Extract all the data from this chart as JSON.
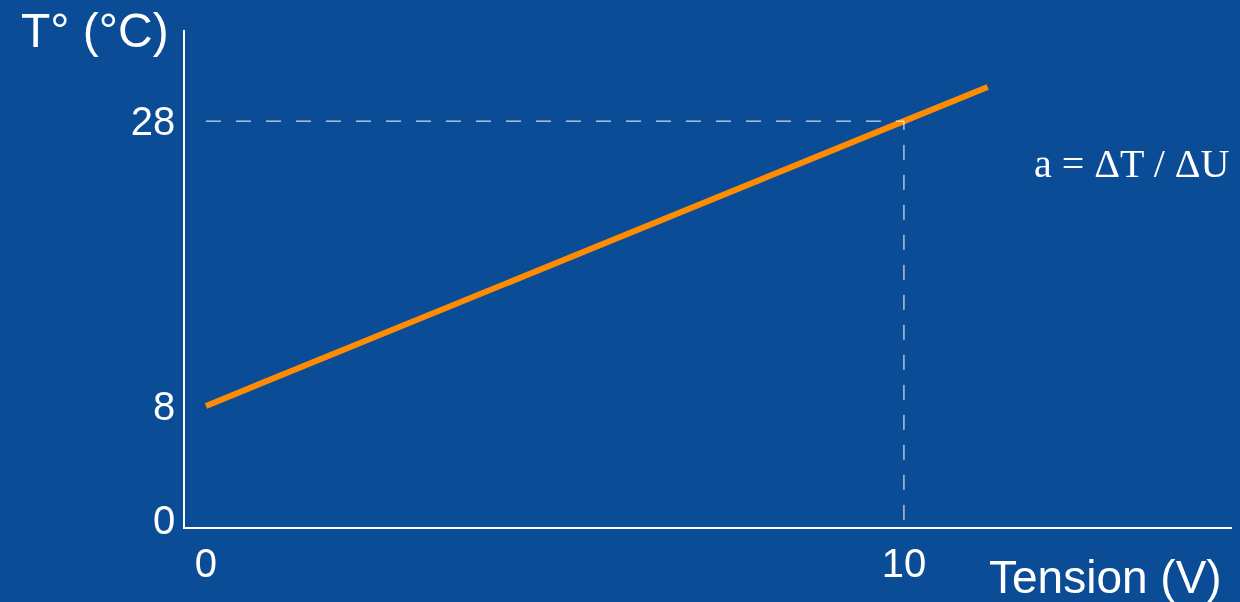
{
  "chart_data": {
    "type": "line",
    "xlabel": "Tension (V)",
    "ylabel": "T° (°C)",
    "x": [
      0,
      10,
      11.2
    ],
    "series": [
      {
        "color": "#ff8c00",
        "values": [
          8,
          28,
          30.4
        ]
      }
    ],
    "xlim": [
      -0.3,
      14.7
    ],
    "ylim": [
      -0.5,
      34.4
    ],
    "xticks": [
      0,
      10
    ],
    "yticks": [
      0,
      8,
      28
    ],
    "ref_lines": [
      {
        "axis": "y",
        "value": 28,
        "color": "#ffffff",
        "line_style": "dashed"
      },
      {
        "axis": "x",
        "value": 10,
        "color": "#ffffff",
        "line_style": "dashed"
      }
    ],
    "annotations": [
      "a = ΔT / ΔU"
    ],
    "grid": false,
    "marker": "none",
    "line_style": "solid"
  }
}
